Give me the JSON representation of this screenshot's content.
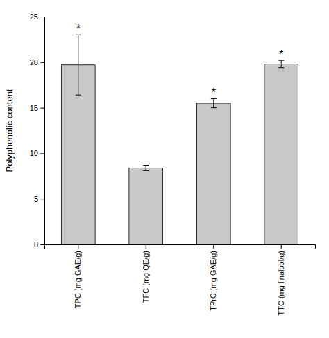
{
  "chart_data": {
    "type": "bar",
    "categories": [
      "TPC (mg GAE/g)",
      "TFC (mg QE/g)",
      "TPrC (mg GAE/g)",
      "TTC (mg linalool/g)"
    ],
    "values": [
      19.7,
      8.4,
      15.5,
      19.8
    ],
    "errors": [
      3.3,
      0.3,
      0.5,
      0.4
    ],
    "color": "#c8c8c8",
    "ylabel": "Polyphenolic content",
    "ylim": [
      0,
      25
    ],
    "yticks": [
      0,
      5,
      10,
      15,
      20,
      25
    ],
    "annotations": [
      {
        "category": "TPC (mg GAE/g)",
        "text": "*"
      },
      {
        "category": "TPrC (mg GAE/g)",
        "text": "*"
      },
      {
        "category": "TTC (mg linalool/g)",
        "text": "*"
      }
    ],
    "grid": false
  }
}
